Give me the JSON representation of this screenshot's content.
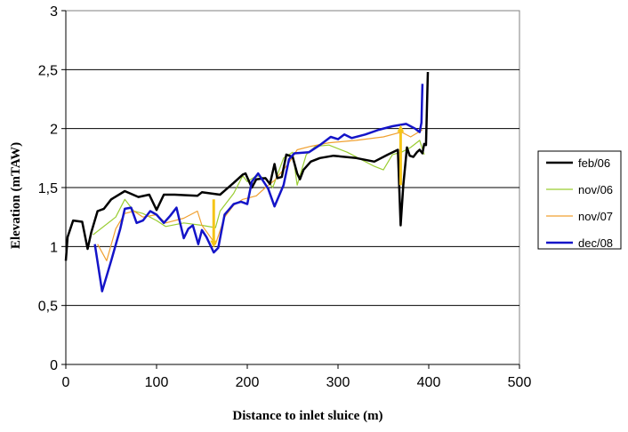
{
  "chart_data": {
    "type": "line",
    "title": "",
    "xlabel": "Distance to inlet sluice (m)",
    "ylabel": "Elevation (mTAW)",
    "xlim": [
      0,
      500
    ],
    "ylim": [
      0,
      3
    ],
    "x_ticks": [
      0,
      100,
      200,
      300,
      400,
      500
    ],
    "x_tick_labels": [
      "0",
      "100",
      "200",
      "300",
      "400",
      "500"
    ],
    "y_ticks": [
      0,
      0.5,
      1,
      1.5,
      2,
      2.5,
      3
    ],
    "y_tick_labels": [
      "0",
      "0,5",
      "1",
      "1,5",
      "2",
      "2,5",
      "3"
    ],
    "grid": "horizontal",
    "legend_position": "right",
    "series": [
      {
        "name": "feb/06",
        "color": "#000000",
        "points": [
          [
            0,
            0.88
          ],
          [
            2,
            1.08
          ],
          [
            8,
            1.22
          ],
          [
            18,
            1.21
          ],
          [
            24,
            0.98
          ],
          [
            28,
            1.12
          ],
          [
            35,
            1.3
          ],
          [
            42,
            1.32
          ],
          [
            50,
            1.4
          ],
          [
            65,
            1.47
          ],
          [
            80,
            1.42
          ],
          [
            92,
            1.44
          ],
          [
            100,
            1.31
          ],
          [
            108,
            1.44
          ],
          [
            120,
            1.44
          ],
          [
            145,
            1.43
          ],
          [
            150,
            1.46
          ],
          [
            170,
            1.44
          ],
          [
            185,
            1.54
          ],
          [
            195,
            1.61
          ],
          [
            198,
            1.62
          ],
          [
            205,
            1.5
          ],
          [
            210,
            1.57
          ],
          [
            220,
            1.58
          ],
          [
            225,
            1.53
          ],
          [
            230,
            1.7
          ],
          [
            233,
            1.58
          ],
          [
            238,
            1.59
          ],
          [
            243,
            1.78
          ],
          [
            250,
            1.76
          ],
          [
            255,
            1.62
          ],
          [
            258,
            1.57
          ],
          [
            262,
            1.65
          ],
          [
            270,
            1.72
          ],
          [
            280,
            1.75
          ],
          [
            295,
            1.77
          ],
          [
            320,
            1.75
          ],
          [
            340,
            1.72
          ],
          [
            355,
            1.78
          ],
          [
            366,
            1.82
          ],
          [
            369,
            1.18
          ],
          [
            372,
            1.52
          ],
          [
            376,
            1.84
          ],
          [
            379,
            1.77
          ],
          [
            383,
            1.76
          ],
          [
            387,
            1.8
          ],
          [
            390,
            1.82
          ],
          [
            393,
            1.79
          ],
          [
            395,
            1.87
          ],
          [
            397,
            1.86
          ],
          [
            399,
            2.48
          ]
        ]
      },
      {
        "name": "nov/06",
        "color": "#9ACD32",
        "points": [
          [
            30,
            1.1
          ],
          [
            55,
            1.25
          ],
          [
            65,
            1.4
          ],
          [
            75,
            1.3
          ],
          [
            85,
            1.28
          ],
          [
            100,
            1.22
          ],
          [
            110,
            1.17
          ],
          [
            130,
            1.2
          ],
          [
            150,
            1.18
          ],
          [
            165,
            1.16
          ],
          [
            170,
            1.3
          ],
          [
            185,
            1.45
          ],
          [
            195,
            1.6
          ],
          [
            200,
            1.55
          ],
          [
            210,
            1.6
          ],
          [
            220,
            1.58
          ],
          [
            228,
            1.5
          ],
          [
            240,
            1.75
          ],
          [
            250,
            1.8
          ],
          [
            255,
            1.52
          ],
          [
            260,
            1.65
          ],
          [
            265,
            1.78
          ],
          [
            275,
            1.85
          ],
          [
            290,
            1.86
          ],
          [
            310,
            1.8
          ],
          [
            330,
            1.72
          ],
          [
            340,
            1.68
          ],
          [
            350,
            1.65
          ],
          [
            360,
            1.78
          ],
          [
            370,
            1.8
          ],
          [
            380,
            1.84
          ],
          [
            390,
            1.9
          ],
          [
            395,
            1.78
          ]
        ]
      },
      {
        "name": "nov/07",
        "color": "#F0A030",
        "points": [
          [
            35,
            1.02
          ],
          [
            45,
            0.88
          ],
          [
            55,
            1.15
          ],
          [
            65,
            1.28
          ],
          [
            75,
            1.3
          ],
          [
            85,
            1.25
          ],
          [
            100,
            1.27
          ],
          [
            110,
            1.2
          ],
          [
            130,
            1.24
          ],
          [
            145,
            1.3
          ],
          [
            150,
            1.18
          ],
          [
            165,
            1.02
          ],
          [
            175,
            1.25
          ],
          [
            185,
            1.35
          ],
          [
            195,
            1.4
          ],
          [
            210,
            1.43
          ],
          [
            220,
            1.5
          ],
          [
            230,
            1.56
          ],
          [
            245,
            1.7
          ],
          [
            255,
            1.82
          ],
          [
            270,
            1.85
          ],
          [
            290,
            1.88
          ],
          [
            320,
            1.9
          ],
          [
            350,
            1.93
          ],
          [
            370,
            1.97
          ],
          [
            380,
            1.93
          ],
          [
            393,
            1.99
          ]
        ]
      },
      {
        "name": "dec/08",
        "color": "#1414C8",
        "points": [
          [
            32,
            1.02
          ],
          [
            40,
            0.62
          ],
          [
            50,
            0.88
          ],
          [
            60,
            1.15
          ],
          [
            65,
            1.32
          ],
          [
            72,
            1.33
          ],
          [
            78,
            1.2
          ],
          [
            85,
            1.22
          ],
          [
            93,
            1.3
          ],
          [
            100,
            1.27
          ],
          [
            108,
            1.2
          ],
          [
            115,
            1.26
          ],
          [
            122,
            1.33
          ],
          [
            130,
            1.07
          ],
          [
            135,
            1.15
          ],
          [
            140,
            1.18
          ],
          [
            146,
            1.02
          ],
          [
            150,
            1.14
          ],
          [
            155,
            1.08
          ],
          [
            163,
            0.95
          ],
          [
            168,
            0.99
          ],
          [
            175,
            1.27
          ],
          [
            185,
            1.36
          ],
          [
            193,
            1.38
          ],
          [
            200,
            1.36
          ],
          [
            205,
            1.55
          ],
          [
            212,
            1.62
          ],
          [
            218,
            1.55
          ],
          [
            223,
            1.49
          ],
          [
            230,
            1.34
          ],
          [
            240,
            1.52
          ],
          [
            246,
            1.74
          ],
          [
            252,
            1.79
          ],
          [
            268,
            1.8
          ],
          [
            280,
            1.86
          ],
          [
            292,
            1.93
          ],
          [
            300,
            1.91
          ],
          [
            307,
            1.95
          ],
          [
            315,
            1.92
          ],
          [
            330,
            1.95
          ],
          [
            345,
            1.99
          ],
          [
            360,
            2.02
          ],
          [
            375,
            2.04
          ],
          [
            385,
            2.0
          ],
          [
            390,
            1.97
          ],
          [
            392,
            2.05
          ],
          [
            393,
            2.38
          ]
        ]
      }
    ],
    "annotations": [
      {
        "type": "arrow",
        "direction": "down",
        "x": 163,
        "y_from": 1.4,
        "y_to": 1.02,
        "color": "#F5C518"
      },
      {
        "type": "arrow",
        "direction": "up",
        "x": 369,
        "y_from": 1.52,
        "y_to": 2.0,
        "color": "#F5C518"
      }
    ]
  }
}
